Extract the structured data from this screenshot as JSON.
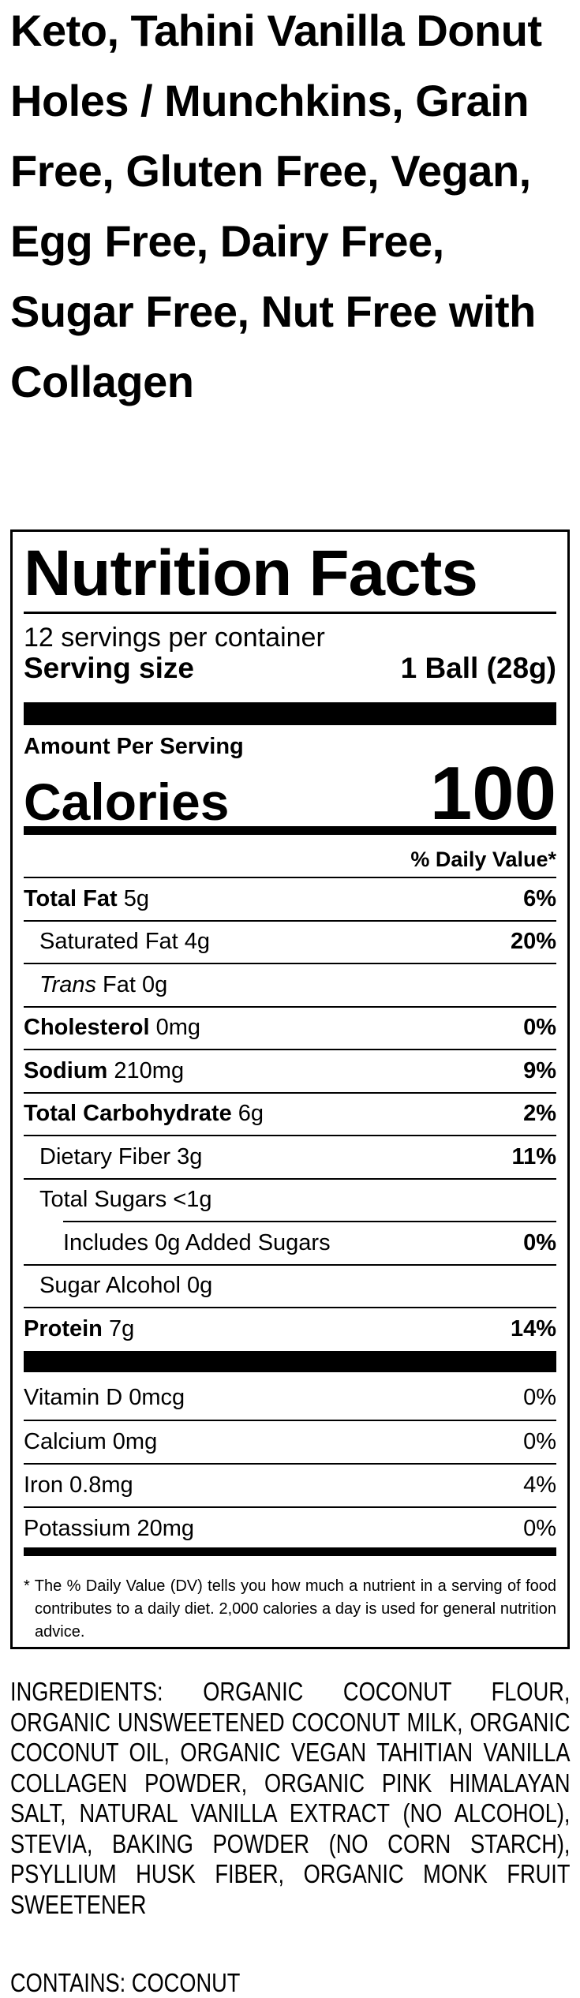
{
  "product_title": "Keto, Tahini Vanilla Donut Holes / Munchkins, Grain Free, Gluten Free, Vegan, Egg Free, Dairy Free, Sugar Free, Nut Free with Collagen",
  "label": {
    "heading": "Nutrition Facts",
    "servings_per_container": "12 servings per container",
    "serving_size_label": "Serving size",
    "serving_size_value": "1 Ball (28g)",
    "amount_per_serving": "Amount Per Serving",
    "calories_label": "Calories",
    "calories_value": "100",
    "daily_value_header": "% Daily Value*",
    "nutrients": [
      {
        "name": "Total Fat",
        "amount": "5g",
        "dv": "6%"
      },
      {
        "name": "Saturated Fat",
        "amount": "4g",
        "dv": "20%"
      },
      {
        "name": "Trans",
        "name_suffix": "Fat",
        "amount": "0g",
        "dv": ""
      },
      {
        "name": "Cholesterol",
        "amount": "0mg",
        "dv": "0%"
      },
      {
        "name": "Sodium",
        "amount": "210mg",
        "dv": "9%"
      },
      {
        "name": "Total Carbohydrate",
        "amount": "6g",
        "dv": "2%"
      },
      {
        "name": "Dietary Fiber",
        "amount": "3g",
        "dv": "11%"
      },
      {
        "name": "Total Sugars",
        "amount": "<1g",
        "dv": ""
      },
      {
        "name": "Includes 0g Added Sugars",
        "amount": "",
        "dv": "0%"
      },
      {
        "name": "Sugar Alcohol",
        "amount": "0g",
        "dv": ""
      },
      {
        "name": "Protein",
        "amount": "7g",
        "dv": "14%"
      }
    ],
    "vitamins": [
      {
        "text": "Vitamin D 0mcg",
        "dv": "0%"
      },
      {
        "text": "Calcium 0mg",
        "dv": "0%"
      },
      {
        "text": "Iron 0.8mg",
        "dv": "4%"
      },
      {
        "text": "Potassium 20mg",
        "dv": "0%"
      }
    ],
    "footnote": "* The % Daily Value (DV) tells you how much a nutrient in a serving of food contributes to a daily diet. 2,000 calories a day is used for general nutrition advice."
  },
  "ingredients": "INGREDIENTS: ORGANIC COCONUT FLOUR, ORGANIC UNSWEETENED COCONUT MILK, ORGANIC COCONUT OIL, ORGANIC VEGAN TAHITIAN VANILLA COLLAGEN POWDER, ORGANIC PINK HIMALAYAN SALT, NATURAL VANILLA EXTRACT (NO ALCOHOL), STEVIA, BAKING POWDER (NO CORN STARCH), PSYLLIUM HUSK FIBER, ORGANIC MONK FRUIT SWEETENER",
  "contains": "CONTAINS: COCONUT"
}
